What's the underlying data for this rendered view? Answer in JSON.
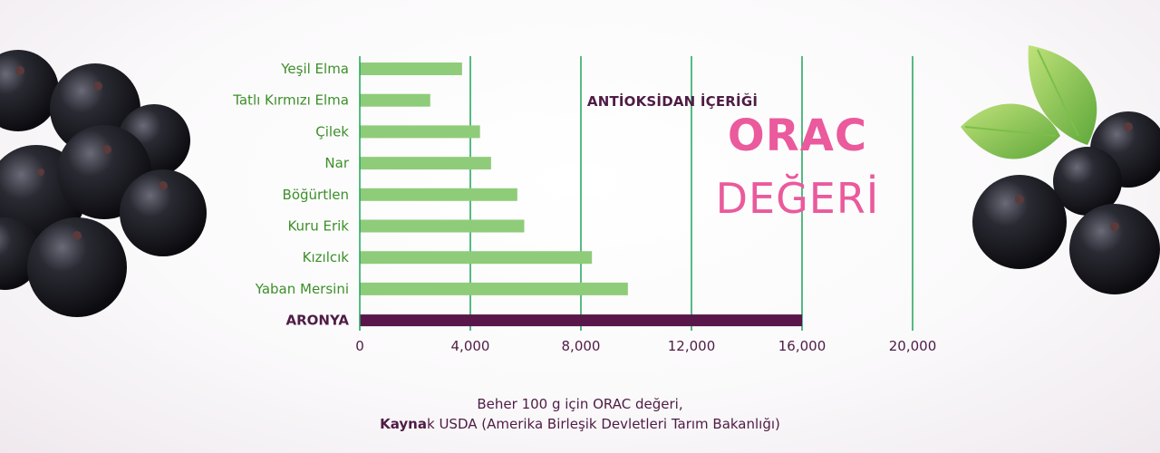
{
  "chart_data": {
    "type": "bar",
    "orientation": "horizontal",
    "categories": [
      "Yeşil Elma",
      "Tatlı Kırmızı Elma",
      "Çilek",
      "Nar",
      "Böğürtlen",
      "Kuru Erik",
      "Kızılcık",
      "Yaban Mersini",
      "ARONYA"
    ],
    "values": [
      3700,
      2550,
      4350,
      4750,
      5700,
      5950,
      8400,
      9700,
      16000
    ],
    "highlight": "ARONYA",
    "xlim": [
      0,
      20000
    ],
    "xticks": [
      "0",
      "4,000",
      "8,000",
      "12,000",
      "16,000",
      "20,000"
    ],
    "grid": "vertical",
    "colors": {
      "bar": "#8fcc7a",
      "highlight_bar": "#58164b",
      "grid": "#1ea35a",
      "label": "#3d8f2a",
      "tick": "#4e1c45"
    }
  },
  "info_box": {
    "pre": "ANTİOKSİDAN İÇERİĞİ",
    "title": "ORAC",
    "subtitle": "DEĞERİ",
    "color": "#ea5a9c"
  },
  "footnote": {
    "line1": "Beher 100 g için ORAC değeri,",
    "line2_bold": "Kayna",
    "line2_rest": "k USDA (Amerika Birleşik Devletleri Tarım Bakanlığı)"
  },
  "decor": {
    "left": "aronia-berries",
    "right": "aronia-berries-with-leaves"
  }
}
